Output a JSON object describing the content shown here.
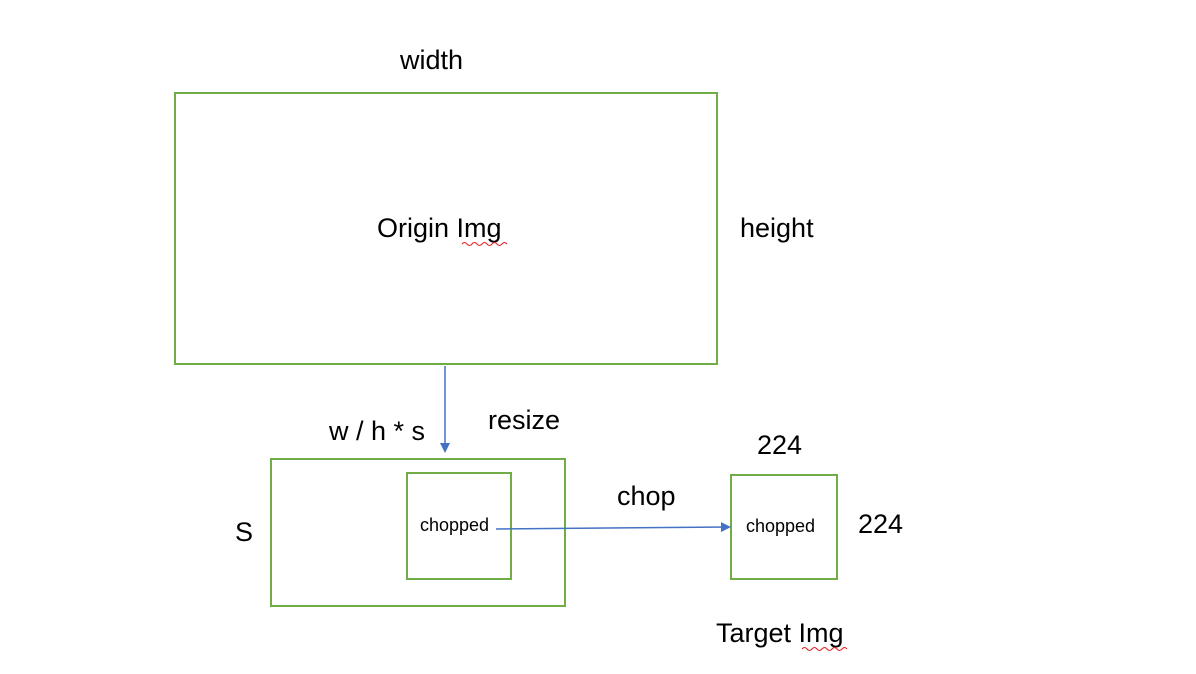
{
  "labels": {
    "width": "width",
    "height": "height",
    "origin_img": "Origin Img",
    "resize": "resize",
    "resize_formula": "w / h * s",
    "short_side": "S",
    "chopped_inner": "chopped",
    "chop": "chop",
    "target_width": "224",
    "target_height": "224",
    "chopped_target": "chopped",
    "target_img": "Target Img"
  },
  "colors": {
    "box_border": "#70ad47",
    "arrow": "#4472c4",
    "spellcheck_underline": "#e02020"
  }
}
